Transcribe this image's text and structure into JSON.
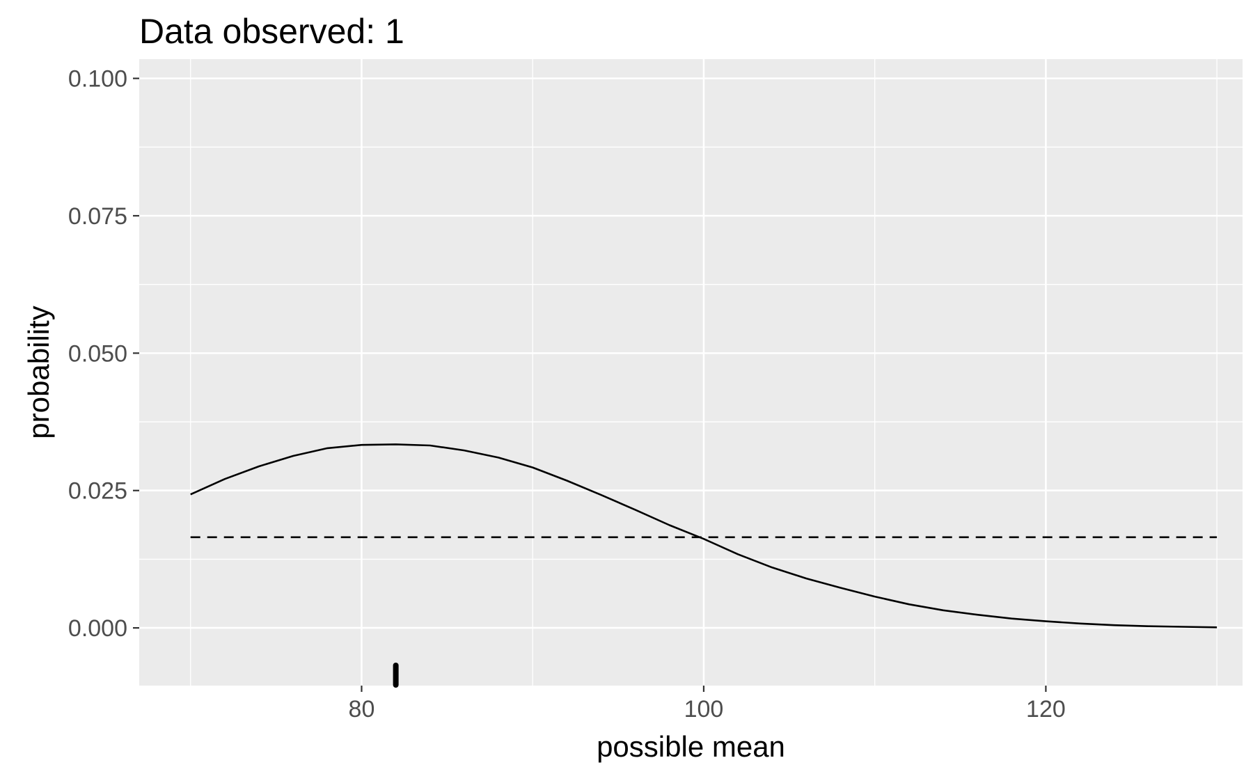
{
  "chart_data": {
    "type": "line",
    "title": "Data observed: 1",
    "xlabel": "possible mean",
    "ylabel": "probability",
    "xlim": [
      67,
      131.5
    ],
    "ylim": [
      -0.0105,
      0.1035
    ],
    "x_ticks": [
      80,
      100,
      120
    ],
    "x_tick_labels": [
      "80",
      "100",
      "120"
    ],
    "x_minor_ticks": [
      70,
      90,
      110,
      130
    ],
    "y_ticks": [
      0,
      0.025,
      0.05,
      0.075,
      0.1
    ],
    "y_tick_labels": [
      "0.000",
      "0.025",
      "0.050",
      "0.075",
      "0.100"
    ],
    "y_minor_ticks": [
      0.0125,
      0.0375,
      0.0625,
      0.0875
    ],
    "grid": true,
    "legend": "none",
    "colors": {
      "panel": "#ebebeb",
      "grid": "#ffffff",
      "line": "#000000",
      "tick_label": "#4d4d4d"
    },
    "series": [
      {
        "style": "solid",
        "x": [
          70,
          72,
          74,
          76,
          78,
          80,
          82,
          84,
          86,
          88,
          90,
          92,
          94,
          96,
          98,
          100,
          102,
          104,
          106,
          108,
          110,
          112,
          114,
          116,
          118,
          120,
          122,
          124,
          126,
          128,
          130
        ],
        "y": [
          0.0243,
          0.0271,
          0.0294,
          0.0313,
          0.0327,
          0.0333,
          0.0334,
          0.0332,
          0.0323,
          0.031,
          0.0292,
          0.0268,
          0.0242,
          0.0215,
          0.0187,
          0.0162,
          0.0134,
          0.011,
          0.009,
          0.0073,
          0.0057,
          0.0043,
          0.0032,
          0.0024,
          0.0017,
          0.0012,
          0.0008,
          0.0005,
          0.0003,
          0.0002,
          0.0001
        ]
      },
      {
        "style": "dashed",
        "x": [
          70,
          130
        ],
        "y": [
          0.0165,
          0.0165
        ]
      }
    ],
    "rug": {
      "x": [
        82
      ]
    }
  }
}
